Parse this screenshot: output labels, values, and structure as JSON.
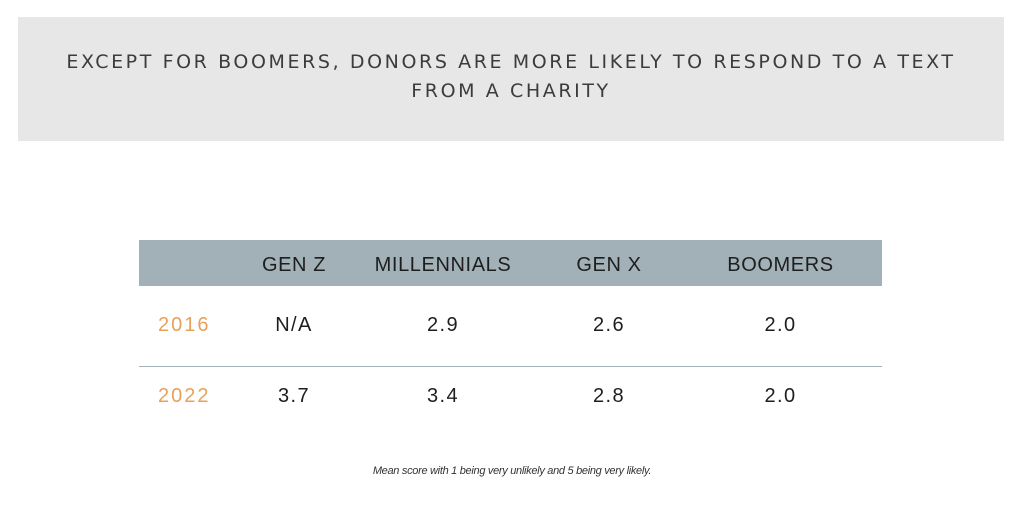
{
  "slide": {
    "title": "EXCEPT FOR BOOMERS, DONORS ARE MORE LIKELY TO RESPOND TO A TEXT FROM A CHARITY",
    "table": {
      "headers": [
        "",
        "GEN Z",
        "MILLENNIALS",
        "GEN X",
        "BOOMERS"
      ],
      "rows": [
        {
          "year": "2016",
          "values": [
            "N/A",
            "2.9",
            "2.6",
            "2.0"
          ]
        },
        {
          "year": "2022",
          "values": [
            "3.7",
            "3.4",
            "2.8",
            "2.0"
          ]
        }
      ]
    },
    "footnote": "Mean score with 1 being very unlikely and 5 being very likely.",
    "colors": {
      "title_band": "#e7e7e7",
      "header_row": "#a2b1b8",
      "year_label": "#e8a15a",
      "row_divider": "#a2b1b8"
    }
  }
}
